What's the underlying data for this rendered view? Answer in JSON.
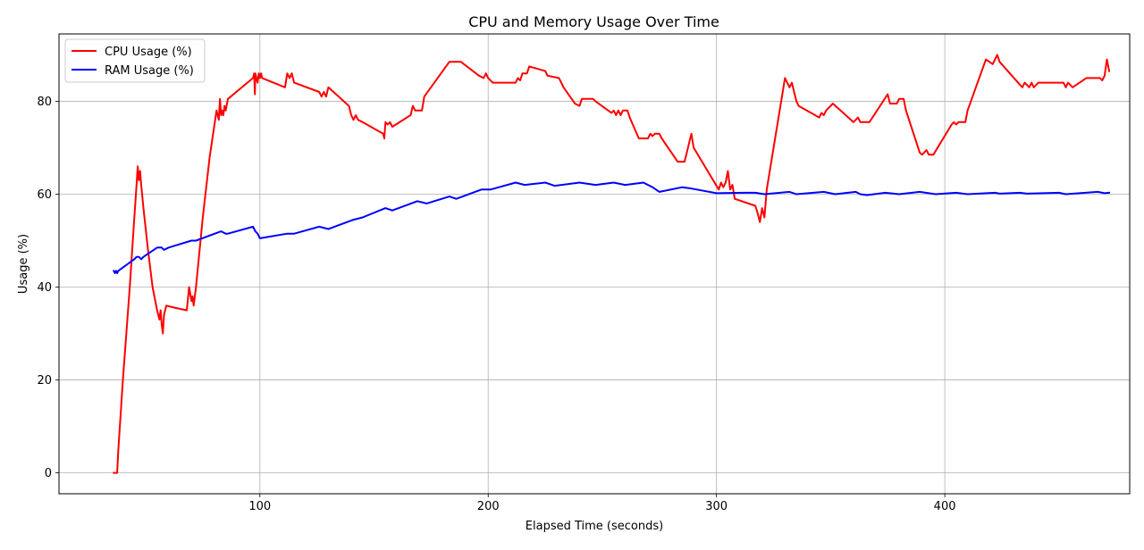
{
  "chart_data": {
    "type": "line",
    "title": "CPU and Memory Usage Over Time",
    "xlabel": "Elapsed Time (seconds)",
    "ylabel": "Usage (%)",
    "xlim": [
      12,
      481
    ],
    "ylim": [
      -4.5,
      94.5
    ],
    "xticks": [
      100,
      200,
      300,
      400
    ],
    "yticks": [
      0,
      20,
      40,
      60,
      80
    ],
    "grid": true,
    "legend": {
      "position": "top-left"
    },
    "series": [
      {
        "name": "CPU Usage (%)",
        "color": "#ff0000",
        "points": [
          [
            36,
            0
          ],
          [
            37,
            0
          ],
          [
            37.5,
            0
          ],
          [
            38,
            5
          ],
          [
            40,
            20
          ],
          [
            43,
            40
          ],
          [
            45,
            55
          ],
          [
            46,
            62
          ],
          [
            46.5,
            66
          ],
          [
            47,
            63
          ],
          [
            47.5,
            65
          ],
          [
            48,
            62
          ],
          [
            49,
            57
          ],
          [
            51,
            48
          ],
          [
            53,
            40
          ],
          [
            55,
            35
          ],
          [
            56,
            33
          ],
          [
            56.5,
            35
          ],
          [
            57,
            32
          ],
          [
            57.5,
            30
          ],
          [
            58,
            34
          ],
          [
            59,
            36
          ],
          [
            63,
            35.5
          ],
          [
            68,
            35
          ],
          [
            69,
            40
          ],
          [
            70,
            37
          ],
          [
            70.5,
            38
          ],
          [
            71,
            36
          ],
          [
            72,
            40
          ],
          [
            75,
            55
          ],
          [
            78,
            68
          ],
          [
            81,
            78
          ],
          [
            82,
            76
          ],
          [
            82.5,
            80.5
          ],
          [
            83,
            77
          ],
          [
            83.5,
            78
          ],
          [
            84,
            77
          ],
          [
            84.5,
            79
          ],
          [
            85,
            78
          ],
          [
            86,
            80.5
          ],
          [
            97,
            85
          ],
          [
            97.5,
            86
          ],
          [
            97.8,
            81.5
          ],
          [
            98,
            86
          ],
          [
            99,
            84
          ],
          [
            99.5,
            86
          ],
          [
            100,
            85
          ],
          [
            100.5,
            86
          ],
          [
            101,
            85
          ],
          [
            111,
            83
          ],
          [
            112,
            86
          ],
          [
            113,
            85
          ],
          [
            114,
            86
          ],
          [
            115,
            84
          ],
          [
            126,
            82
          ],
          [
            127,
            81
          ],
          [
            128,
            82
          ],
          [
            129,
            81
          ],
          [
            130,
            83
          ],
          [
            139,
            79
          ],
          [
            140,
            77
          ],
          [
            141,
            76
          ],
          [
            142,
            77
          ],
          [
            143,
            76
          ],
          [
            145,
            75.5
          ],
          [
            154,
            73
          ],
          [
            154.5,
            72
          ],
          [
            155,
            75.5
          ],
          [
            156,
            75
          ],
          [
            157,
            75.5
          ],
          [
            158,
            74.5
          ],
          [
            166,
            77
          ],
          [
            167,
            79
          ],
          [
            168,
            78
          ],
          [
            171,
            78
          ],
          [
            172,
            81
          ],
          [
            183,
            88.5
          ],
          [
            188,
            88.5
          ],
          [
            196,
            85.5
          ],
          [
            198,
            85
          ],
          [
            199,
            86
          ],
          [
            200,
            85
          ],
          [
            202,
            84
          ],
          [
            212,
            84
          ],
          [
            213,
            85
          ],
          [
            214,
            84.5
          ],
          [
            215,
            86
          ],
          [
            217,
            86
          ],
          [
            218,
            87.5
          ],
          [
            225,
            86.5
          ],
          [
            226,
            85.5
          ],
          [
            231,
            85
          ],
          [
            232,
            84
          ],
          [
            233,
            83
          ],
          [
            238,
            79.5
          ],
          [
            240,
            79
          ],
          [
            241,
            80.5
          ],
          [
            246,
            80.5
          ],
          [
            247,
            80
          ],
          [
            254,
            77.5
          ],
          [
            255,
            78
          ],
          [
            256,
            77
          ],
          [
            257,
            78
          ],
          [
            258,
            77
          ],
          [
            259,
            78
          ],
          [
            261,
            78
          ],
          [
            262,
            76.5
          ],
          [
            266,
            72
          ],
          [
            270,
            72
          ],
          [
            271,
            73
          ],
          [
            272,
            72.5
          ],
          [
            273,
            73
          ],
          [
            275,
            73
          ],
          [
            276,
            72
          ],
          [
            283,
            67
          ],
          [
            286,
            67
          ],
          [
            287,
            69
          ],
          [
            288,
            71
          ],
          [
            289,
            73
          ],
          [
            290,
            70
          ],
          [
            301,
            61
          ],
          [
            302,
            62.5
          ],
          [
            303,
            61.5
          ],
          [
            304,
            62.5
          ],
          [
            305,
            65
          ],
          [
            306,
            61
          ],
          [
            307,
            62
          ],
          [
            308,
            59
          ],
          [
            317,
            57.5
          ],
          [
            318,
            56
          ],
          [
            319,
            54
          ],
          [
            320,
            57
          ],
          [
            321,
            55
          ],
          [
            322,
            61
          ],
          [
            330,
            85
          ],
          [
            331,
            84
          ],
          [
            332,
            83
          ],
          [
            333,
            84
          ],
          [
            334,
            82
          ],
          [
            335,
            80
          ],
          [
            336,
            79
          ],
          [
            345,
            76.5
          ],
          [
            346,
            77.5
          ],
          [
            347,
            77
          ],
          [
            348,
            78
          ],
          [
            350,
            79
          ],
          [
            351,
            79.5
          ],
          [
            360,
            75.5
          ],
          [
            362,
            76.5
          ],
          [
            363,
            75.5
          ],
          [
            367,
            75.5
          ],
          [
            375,
            81.5
          ],
          [
            376,
            79.5
          ],
          [
            379,
            79.5
          ],
          [
            380,
            80.5
          ],
          [
            382,
            80.5
          ],
          [
            383,
            78
          ],
          [
            389,
            69
          ],
          [
            390,
            68.5
          ],
          [
            392,
            69.5
          ],
          [
            393,
            68.5
          ],
          [
            395,
            68.5
          ],
          [
            403,
            75
          ],
          [
            404,
            75.5
          ],
          [
            405,
            75
          ],
          [
            406,
            75.5
          ],
          [
            409,
            75.5
          ],
          [
            410,
            78
          ],
          [
            418,
            89
          ],
          [
            421,
            88
          ],
          [
            422,
            89
          ],
          [
            423,
            90
          ],
          [
            424,
            88.5
          ],
          [
            433,
            83.5
          ],
          [
            434,
            83
          ],
          [
            435,
            84
          ],
          [
            437,
            83
          ],
          [
            438,
            84
          ],
          [
            439,
            83
          ],
          [
            441,
            84
          ],
          [
            452,
            84
          ],
          [
            453,
            83
          ],
          [
            454,
            84
          ],
          [
            455,
            83.5
          ],
          [
            456,
            83
          ],
          [
            462,
            85
          ],
          [
            468,
            85
          ],
          [
            469,
            84.5
          ],
          [
            470,
            85.5
          ],
          [
            471,
            89
          ],
          [
            472,
            86.5
          ]
        ]
      },
      {
        "name": "RAM Usage (%)",
        "color": "#0000ff",
        "points": [
          [
            36,
            43.5
          ],
          [
            36.5,
            43
          ],
          [
            37,
            43.5
          ],
          [
            37.5,
            43
          ],
          [
            38,
            43.5
          ],
          [
            45,
            46
          ],
          [
            46,
            46.5
          ],
          [
            47,
            46.5
          ],
          [
            48,
            46
          ],
          [
            49,
            46.5
          ],
          [
            55,
            48.5
          ],
          [
            56,
            48.5
          ],
          [
            57,
            48.5
          ],
          [
            58,
            48
          ],
          [
            60,
            48.5
          ],
          [
            70,
            50
          ],
          [
            72,
            50
          ],
          [
            83,
            52
          ],
          [
            85,
            51.5
          ],
          [
            86,
            51.5
          ],
          [
            97,
            53
          ],
          [
            98,
            52
          ],
          [
            99,
            51.5
          ],
          [
            100,
            50.5
          ],
          [
            112,
            51.5
          ],
          [
            115,
            51.5
          ],
          [
            126,
            53
          ],
          [
            130,
            52.5
          ],
          [
            141,
            54.5
          ],
          [
            145,
            55
          ],
          [
            155,
            57
          ],
          [
            158,
            56.5
          ],
          [
            169,
            58.5
          ],
          [
            173,
            58
          ],
          [
            183,
            59.5
          ],
          [
            186,
            59
          ],
          [
            197,
            61
          ],
          [
            200,
            61
          ],
          [
            201,
            61
          ],
          [
            212,
            62.5
          ],
          [
            216,
            62
          ],
          [
            225,
            62.5
          ],
          [
            228,
            62
          ],
          [
            229,
            61.8
          ],
          [
            240,
            62.5
          ],
          [
            247,
            62
          ],
          [
            255,
            62.5
          ],
          [
            260,
            62
          ],
          [
            268,
            62.5
          ],
          [
            272,
            61.5
          ],
          [
            275,
            60.5
          ],
          [
            285,
            61.5
          ],
          [
            288,
            61.3
          ],
          [
            300,
            60.2
          ],
          [
            312,
            60.3
          ],
          [
            317,
            60.3
          ],
          [
            321,
            60
          ],
          [
            332,
            60.5
          ],
          [
            335,
            60
          ],
          [
            347,
            60.5
          ],
          [
            352,
            60
          ],
          [
            361,
            60.5
          ],
          [
            363,
            60
          ],
          [
            366,
            59.8
          ],
          [
            374,
            60.3
          ],
          [
            380,
            60
          ],
          [
            389,
            60.5
          ],
          [
            396,
            60
          ],
          [
            405,
            60.3
          ],
          [
            410,
            60
          ],
          [
            422,
            60.3
          ],
          [
            424,
            60.1
          ],
          [
            433,
            60.3
          ],
          [
            436,
            60.1
          ],
          [
            450,
            60.3
          ],
          [
            453,
            60
          ],
          [
            467,
            60.5
          ],
          [
            470,
            60.2
          ],
          [
            472,
            60.3
          ]
        ]
      }
    ]
  }
}
